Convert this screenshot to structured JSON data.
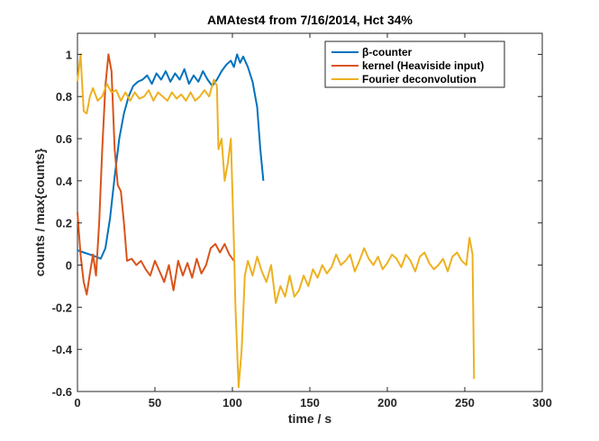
{
  "chart_data": {
    "type": "line",
    "title": "AMAtest4 from 7/16/2014, Hct 34%",
    "xlabel": "time / s",
    "ylabel": "counts / max{counts}",
    "xlim": [
      0,
      300
    ],
    "ylim": [
      -0.6,
      1.1
    ],
    "xticks": [
      0,
      50,
      100,
      150,
      200,
      250,
      300
    ],
    "yticks": [
      -0.6,
      -0.4,
      -0.2,
      0,
      0.2,
      0.4,
      0.6,
      0.8,
      1
    ],
    "xtick_labels": [
      "0",
      "50",
      "100",
      "150",
      "200",
      "250",
      "300"
    ],
    "ytick_labels": [
      "-0.6",
      "-0.4",
      "-0.2",
      "0",
      "0.2",
      "0.4",
      "0.6",
      "0.8",
      "1"
    ],
    "grid": false,
    "legend_position": "top-right",
    "series": [
      {
        "name": "β-counter",
        "color": "#0072BD",
        "x": [
          0,
          4,
          8,
          12,
          15,
          18,
          21,
          24,
          27,
          30,
          33,
          36,
          39,
          42,
          45,
          48,
          51,
          54,
          57,
          60,
          63,
          66,
          69,
          72,
          75,
          78,
          81,
          84,
          87,
          90,
          93,
          96,
          99,
          101,
          103,
          105,
          107,
          110,
          113,
          116,
          118,
          120
        ],
        "y": [
          0.07,
          0.06,
          0.05,
          0.04,
          0.03,
          0.08,
          0.22,
          0.42,
          0.6,
          0.72,
          0.8,
          0.85,
          0.87,
          0.88,
          0.9,
          0.86,
          0.91,
          0.88,
          0.92,
          0.87,
          0.91,
          0.88,
          0.93,
          0.86,
          0.9,
          0.87,
          0.92,
          0.88,
          0.85,
          0.88,
          0.92,
          0.95,
          0.97,
          0.94,
          1.0,
          0.96,
          0.99,
          0.94,
          0.87,
          0.75,
          0.55,
          0.4
        ]
      },
      {
        "name": "kernel (Heaviside input)",
        "color": "#D95319",
        "x": [
          0,
          2,
          4,
          6,
          8,
          10,
          12,
          14,
          16,
          18,
          20,
          22,
          24,
          26,
          28,
          30,
          32,
          35,
          38,
          41,
          44,
          47,
          50,
          53,
          56,
          59,
          62,
          65,
          68,
          71,
          74,
          77,
          80,
          83,
          86,
          89,
          92,
          95,
          98,
          101
        ],
        "y": [
          0.25,
          0.05,
          -0.08,
          -0.14,
          -0.04,
          0.05,
          -0.05,
          0.2,
          0.55,
          0.85,
          1.0,
          0.92,
          0.55,
          0.38,
          0.35,
          0.2,
          0.02,
          0.03,
          0.0,
          0.02,
          -0.02,
          -0.05,
          0.02,
          -0.03,
          -0.08,
          0.0,
          -0.12,
          0.02,
          -0.05,
          0.01,
          -0.06,
          0.03,
          -0.04,
          0.0,
          0.08,
          0.1,
          0.06,
          0.1,
          0.05,
          0.02
        ]
      },
      {
        "name": "Fourier deconvolution",
        "color": "#EDB120",
        "x": [
          0,
          2,
          4,
          6,
          8,
          10,
          13,
          16,
          19,
          22,
          25,
          28,
          31,
          34,
          37,
          40,
          43,
          46,
          49,
          52,
          55,
          58,
          61,
          64,
          67,
          70,
          73,
          76,
          79,
          82,
          85,
          88,
          90,
          91,
          93,
          95,
          97,
          99,
          101,
          102,
          104,
          106,
          108,
          110,
          113,
          116,
          119,
          122,
          125,
          128,
          131,
          134,
          137,
          140,
          143,
          146,
          149,
          152,
          155,
          158,
          161,
          164,
          167,
          170,
          173,
          176,
          179,
          182,
          185,
          188,
          191,
          194,
          197,
          200,
          203,
          206,
          209,
          212,
          215,
          218,
          221,
          224,
          227,
          230,
          233,
          236,
          239,
          242,
          245,
          248,
          251,
          253,
          255,
          256
        ],
        "y": [
          0.87,
          1.0,
          0.73,
          0.72,
          0.8,
          0.84,
          0.78,
          0.8,
          0.86,
          0.82,
          0.83,
          0.78,
          0.82,
          0.78,
          0.82,
          0.79,
          0.8,
          0.83,
          0.78,
          0.82,
          0.8,
          0.78,
          0.82,
          0.79,
          0.81,
          0.78,
          0.82,
          0.78,
          0.8,
          0.83,
          0.8,
          0.88,
          0.85,
          0.55,
          0.6,
          0.4,
          0.48,
          0.6,
          0.1,
          -0.2,
          -0.58,
          -0.4,
          -0.05,
          0.02,
          -0.05,
          0.04,
          -0.03,
          -0.08,
          0.0,
          -0.18,
          -0.1,
          -0.15,
          -0.05,
          -0.15,
          -0.12,
          -0.05,
          -0.1,
          -0.02,
          -0.06,
          0.0,
          -0.04,
          -0.01,
          0.05,
          0.0,
          0.02,
          0.05,
          -0.03,
          0.02,
          0.08,
          0.03,
          0.0,
          0.04,
          -0.02,
          0.01,
          0.05,
          0.03,
          -0.01,
          0.05,
          0.02,
          -0.03,
          0.04,
          0.06,
          0.01,
          -0.02,
          0.0,
          0.03,
          -0.03,
          0.04,
          0.06,
          0.02,
          0.0,
          0.13,
          0.05,
          -0.54
        ]
      }
    ]
  }
}
